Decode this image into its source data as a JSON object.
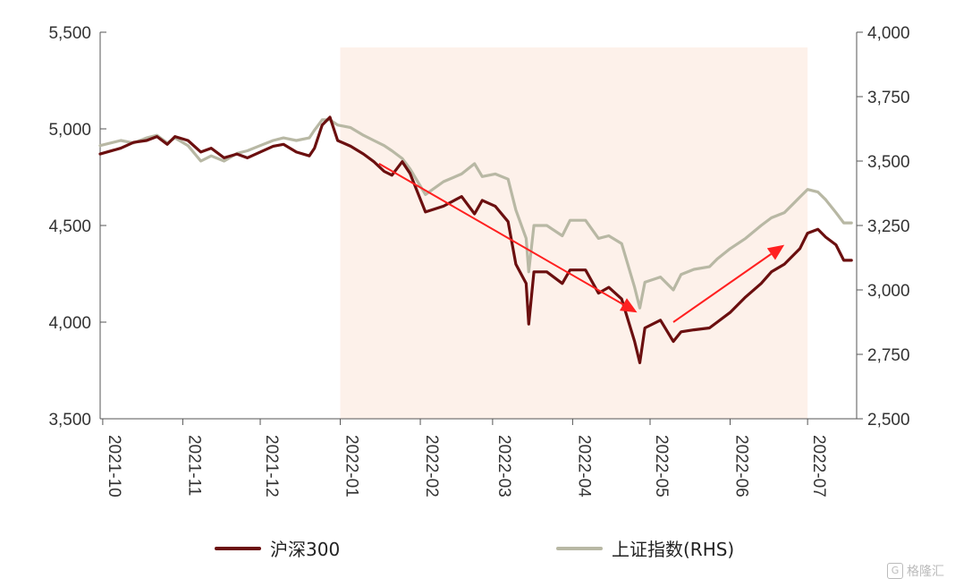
{
  "chart_data": {
    "type": "line",
    "x_ticks": [
      "2021-10",
      "2021-11",
      "2021-12",
      "2022-01",
      "2022-02",
      "2022-03",
      "2022-04",
      "2022-05",
      "2022-06",
      "2022-07"
    ],
    "y_left": {
      "range": [
        3500,
        5500
      ],
      "ticks": [
        "3,500",
        "4,000",
        "4,500",
        "5,000",
        "5,500"
      ]
    },
    "y_right": {
      "range": [
        2500,
        4000
      ],
      "ticks": [
        "2,500",
        "2,750",
        "3,000",
        "3,250",
        "3,500",
        "3,750",
        "4,000"
      ]
    },
    "shaded_period": {
      "start": "2022-01",
      "end": "2022-07",
      "color": "#fdf1ea"
    },
    "annotations": [
      {
        "type": "arrow",
        "direction": "down",
        "color": "#ff2020",
        "from": [
          "2022-01-16",
          4820
        ],
        "to": [
          "2022-04-26",
          4050
        ]
      },
      {
        "type": "arrow",
        "direction": "up",
        "color": "#ff2020",
        "from": [
          "2022-05-10",
          4000
        ],
        "to": [
          "2022-06-22",
          4400
        ]
      }
    ],
    "series": [
      {
        "name": "沪深300",
        "axis": "left",
        "color": "#6b0f0f",
        "points": [
          [
            "2021-09-30",
            4870
          ],
          [
            "2021-10-08",
            4900
          ],
          [
            "2021-10-13",
            4930
          ],
          [
            "2021-10-18",
            4940
          ],
          [
            "2021-10-22",
            4960
          ],
          [
            "2021-10-26",
            4920
          ],
          [
            "2021-10-29",
            4960
          ],
          [
            "2021-11-03",
            4940
          ],
          [
            "2021-11-08",
            4880
          ],
          [
            "2021-11-12",
            4900
          ],
          [
            "2021-11-17",
            4850
          ],
          [
            "2021-11-22",
            4870
          ],
          [
            "2021-11-26",
            4850
          ],
          [
            "2021-12-01",
            4880
          ],
          [
            "2021-12-06",
            4910
          ],
          [
            "2021-12-10",
            4920
          ],
          [
            "2021-12-15",
            4880
          ],
          [
            "2021-12-20",
            4860
          ],
          [
            "2021-12-22",
            4900
          ],
          [
            "2021-12-25",
            5020
          ],
          [
            "2021-12-28",
            5060
          ],
          [
            "2021-12-31",
            4940
          ],
          [
            "2022-01-05",
            4910
          ],
          [
            "2022-01-10",
            4870
          ],
          [
            "2022-01-14",
            4830
          ],
          [
            "2022-01-18",
            4780
          ],
          [
            "2022-01-21",
            4760
          ],
          [
            "2022-01-25",
            4830
          ],
          [
            "2022-01-28",
            4770
          ],
          [
            "2022-02-03",
            4570
          ],
          [
            "2022-02-10",
            4600
          ],
          [
            "2022-02-17",
            4650
          ],
          [
            "2022-02-22",
            4560
          ],
          [
            "2022-02-25",
            4630
          ],
          [
            "2022-03-02",
            4600
          ],
          [
            "2022-03-07",
            4520
          ],
          [
            "2022-03-10",
            4300
          ],
          [
            "2022-03-14",
            4200
          ],
          [
            "2022-03-15",
            3990
          ],
          [
            "2022-03-17",
            4260
          ],
          [
            "2022-03-22",
            4260
          ],
          [
            "2022-03-28",
            4200
          ],
          [
            "2022-03-31",
            4270
          ],
          [
            "2022-04-06",
            4270
          ],
          [
            "2022-04-11",
            4150
          ],
          [
            "2022-04-15",
            4180
          ],
          [
            "2022-04-20",
            4120
          ],
          [
            "2022-04-25",
            3900
          ],
          [
            "2022-04-27",
            3790
          ],
          [
            "2022-04-29",
            3970
          ],
          [
            "2022-05-05",
            4010
          ],
          [
            "2022-05-10",
            3900
          ],
          [
            "2022-05-13",
            3950
          ],
          [
            "2022-05-18",
            3960
          ],
          [
            "2022-05-24",
            3970
          ],
          [
            "2022-05-27",
            4000
          ],
          [
            "2022-06-01",
            4050
          ],
          [
            "2022-06-07",
            4130
          ],
          [
            "2022-06-13",
            4200
          ],
          [
            "2022-06-17",
            4260
          ],
          [
            "2022-06-22",
            4300
          ],
          [
            "2022-06-28",
            4380
          ],
          [
            "2022-07-01",
            4460
          ],
          [
            "2022-07-05",
            4480
          ],
          [
            "2022-07-08",
            4440
          ],
          [
            "2022-07-12",
            4400
          ],
          [
            "2022-07-15",
            4320
          ],
          [
            "2022-07-18",
            4320
          ]
        ]
      },
      {
        "name": "上证指数(RHS)",
        "axis": "right",
        "color": "#b8b8a4",
        "points": [
          [
            "2021-09-30",
            3560
          ],
          [
            "2021-10-08",
            3580
          ],
          [
            "2021-10-13",
            3570
          ],
          [
            "2021-10-18",
            3590
          ],
          [
            "2021-10-22",
            3600
          ],
          [
            "2021-10-26",
            3570
          ],
          [
            "2021-10-29",
            3590
          ],
          [
            "2021-11-03",
            3560
          ],
          [
            "2021-11-08",
            3500
          ],
          [
            "2021-11-12",
            3520
          ],
          [
            "2021-11-17",
            3500
          ],
          [
            "2021-11-22",
            3530
          ],
          [
            "2021-11-26",
            3540
          ],
          [
            "2021-12-01",
            3560
          ],
          [
            "2021-12-06",
            3580
          ],
          [
            "2021-12-10",
            3590
          ],
          [
            "2021-12-15",
            3580
          ],
          [
            "2021-12-20",
            3590
          ],
          [
            "2021-12-22",
            3620
          ],
          [
            "2021-12-25",
            3660
          ],
          [
            "2021-12-28",
            3660
          ],
          [
            "2021-12-31",
            3640
          ],
          [
            "2022-01-05",
            3630
          ],
          [
            "2022-01-10",
            3600
          ],
          [
            "2022-01-14",
            3580
          ],
          [
            "2022-01-18",
            3560
          ],
          [
            "2022-01-21",
            3540
          ],
          [
            "2022-01-25",
            3510
          ],
          [
            "2022-01-28",
            3470
          ],
          [
            "2022-02-03",
            3370
          ],
          [
            "2022-02-10",
            3420
          ],
          [
            "2022-02-17",
            3450
          ],
          [
            "2022-02-22",
            3490
          ],
          [
            "2022-02-25",
            3440
          ],
          [
            "2022-03-02",
            3450
          ],
          [
            "2022-03-07",
            3430
          ],
          [
            "2022-03-10",
            3310
          ],
          [
            "2022-03-14",
            3200
          ],
          [
            "2022-03-15",
            3070
          ],
          [
            "2022-03-17",
            3250
          ],
          [
            "2022-03-22",
            3250
          ],
          [
            "2022-03-28",
            3210
          ],
          [
            "2022-03-31",
            3270
          ],
          [
            "2022-04-06",
            3270
          ],
          [
            "2022-04-11",
            3200
          ],
          [
            "2022-04-15",
            3210
          ],
          [
            "2022-04-20",
            3180
          ],
          [
            "2022-04-25",
            3010
          ],
          [
            "2022-04-27",
            2930
          ],
          [
            "2022-04-29",
            3030
          ],
          [
            "2022-05-05",
            3050
          ],
          [
            "2022-05-10",
            3000
          ],
          [
            "2022-05-13",
            3060
          ],
          [
            "2022-05-18",
            3080
          ],
          [
            "2022-05-24",
            3090
          ],
          [
            "2022-05-27",
            3120
          ],
          [
            "2022-06-01",
            3160
          ],
          [
            "2022-06-07",
            3200
          ],
          [
            "2022-06-13",
            3250
          ],
          [
            "2022-06-17",
            3280
          ],
          [
            "2022-06-22",
            3300
          ],
          [
            "2022-06-28",
            3360
          ],
          [
            "2022-07-01",
            3390
          ],
          [
            "2022-07-05",
            3380
          ],
          [
            "2022-07-08",
            3350
          ],
          [
            "2022-07-12",
            3300
          ],
          [
            "2022-07-15",
            3260
          ],
          [
            "2022-07-18",
            3260
          ]
        ]
      }
    ],
    "legend": [
      {
        "label": "沪深300",
        "color": "#6b0f0f"
      },
      {
        "label": "上证指数(RHS)",
        "color": "#b8b8a4"
      }
    ],
    "legend_position": "bottom"
  },
  "watermark": {
    "text": "格隆汇",
    "icon": "gelonghui-logo-icon"
  }
}
